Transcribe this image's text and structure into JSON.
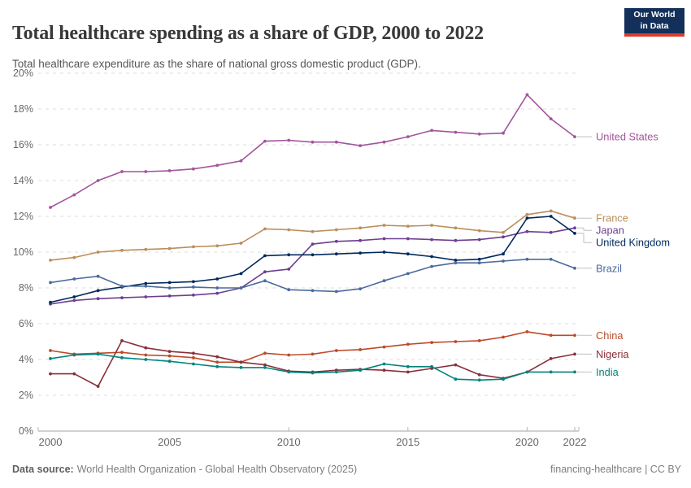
{
  "header": {
    "title": "Total healthcare spending as a share of GDP, 2000 to 2022",
    "subtitle": "Total healthcare expenditure as the share of national gross domestic product (GDP).",
    "logo_line1": "Our World",
    "logo_line2": "in Data"
  },
  "footer": {
    "source_label": "Data source:",
    "source_value": "World Health Organization - Global Health Observatory (2025)",
    "license": "financing-healthcare | CC BY"
  },
  "chart_data": {
    "type": "line",
    "title": "Total healthcare spending as a share of GDP, 2000 to 2022",
    "xlabel": "",
    "ylabel": "",
    "x": [
      2000,
      2001,
      2002,
      2003,
      2004,
      2005,
      2006,
      2007,
      2008,
      2009,
      2010,
      2011,
      2012,
      2013,
      2014,
      2015,
      2016,
      2017,
      2018,
      2019,
      2020,
      2021,
      2022
    ],
    "xticks": [
      2000,
      2005,
      2010,
      2015,
      2020,
      2022
    ],
    "ylim": [
      0,
      20
    ],
    "ytick_step": 2,
    "ytick_suffix": "%",
    "grid": "horizontal-dashed",
    "legend_position": "right-edge-labels",
    "series": [
      {
        "name": "United States",
        "color": "#a2559c",
        "values": [
          12.5,
          13.2,
          14.0,
          14.5,
          14.5,
          14.55,
          14.65,
          14.85,
          15.1,
          16.2,
          16.25,
          16.15,
          16.15,
          15.95,
          16.15,
          16.45,
          16.8,
          16.7,
          16.6,
          16.65,
          18.8,
          17.45,
          16.45
        ]
      },
      {
        "name": "France",
        "color": "#bc8e5a",
        "values": [
          9.55,
          9.7,
          10.0,
          10.1,
          10.15,
          10.2,
          10.3,
          10.35,
          10.5,
          11.3,
          11.25,
          11.15,
          11.25,
          11.35,
          11.5,
          11.45,
          11.5,
          11.35,
          11.2,
          11.1,
          12.1,
          12.3,
          11.9
        ]
      },
      {
        "name": "Japan",
        "color": "#6d3e91",
        "values": [
          7.1,
          7.3,
          7.4,
          7.45,
          7.5,
          7.55,
          7.6,
          7.7,
          8.0,
          8.9,
          9.05,
          10.45,
          10.6,
          10.65,
          10.75,
          10.75,
          10.7,
          10.65,
          10.7,
          10.85,
          11.15,
          11.1,
          11.35
        ]
      },
      {
        "name": "United Kingdom",
        "color": "#00295b",
        "values": [
          7.2,
          7.5,
          7.85,
          8.05,
          8.25,
          8.3,
          8.35,
          8.5,
          8.8,
          9.8,
          9.85,
          9.85,
          9.9,
          9.95,
          10.0,
          9.9,
          9.75,
          9.55,
          9.6,
          9.9,
          11.9,
          12.0,
          11.05
        ]
      },
      {
        "name": "Brazil",
        "color": "#4c6a9c",
        "values": [
          8.3,
          8.5,
          8.65,
          8.1,
          8.1,
          8.0,
          8.05,
          8.0,
          8.0,
          8.4,
          7.9,
          7.85,
          7.8,
          7.95,
          8.4,
          8.8,
          9.2,
          9.4,
          9.4,
          9.5,
          9.6,
          9.6,
          9.1
        ]
      },
      {
        "name": "China",
        "color": "#bc4a29",
        "values": [
          4.5,
          4.3,
          4.35,
          4.4,
          4.25,
          4.2,
          4.1,
          3.85,
          3.85,
          4.35,
          4.25,
          4.3,
          4.5,
          4.55,
          4.7,
          4.85,
          4.95,
          5.0,
          5.05,
          5.25,
          5.55,
          5.35,
          5.35
        ]
      },
      {
        "name": "Nigeria",
        "color": "#883039",
        "values": [
          3.2,
          3.2,
          2.5,
          5.05,
          4.65,
          4.45,
          4.35,
          4.15,
          3.85,
          3.7,
          3.35,
          3.3,
          3.4,
          3.45,
          3.4,
          3.3,
          3.5,
          3.7,
          3.15,
          2.95,
          3.3,
          4.05,
          4.3
        ]
      },
      {
        "name": "India",
        "color": "#00847e",
        "values": [
          4.05,
          4.25,
          4.3,
          4.1,
          4.0,
          3.9,
          3.75,
          3.6,
          3.55,
          3.55,
          3.3,
          3.25,
          3.3,
          3.4,
          3.75,
          3.6,
          3.6,
          2.9,
          2.85,
          2.9,
          3.3,
          3.3,
          3.3
        ]
      }
    ]
  }
}
